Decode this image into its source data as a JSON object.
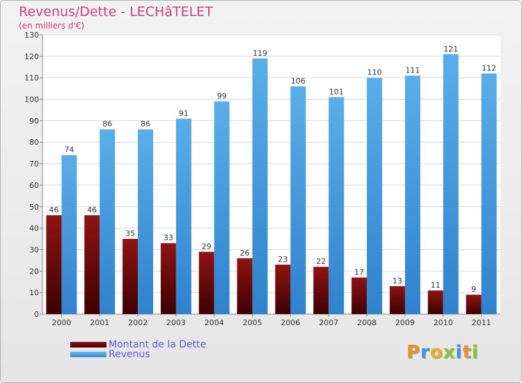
{
  "chart_data": {
    "type": "bar",
    "title": "Revenus/Dette - LECHâTELET",
    "subtitle": "(en milliers d'€)",
    "categories": [
      "2000",
      "2001",
      "2002",
      "2003",
      "2004",
      "2005",
      "2006",
      "2007",
      "2008",
      "2009",
      "2010",
      "2011"
    ],
    "series": [
      {
        "name": "Montant de la Dette",
        "color": "#6a0a0a",
        "values": [
          46,
          46,
          35,
          33,
          29,
          26,
          23,
          22,
          17,
          13,
          11,
          9
        ]
      },
      {
        "name": "Revenus",
        "color": "#4a9fe0",
        "values": [
          74,
          86,
          86,
          91,
          99,
          119,
          106,
          101,
          110,
          111,
          121,
          112
        ]
      }
    ],
    "ylim": [
      0,
      130
    ],
    "yticks": [
      0,
      10,
      20,
      30,
      40,
      50,
      60,
      70,
      80,
      90,
      100,
      110,
      120,
      130
    ],
    "grid": true,
    "legend_position": "bottom-left"
  },
  "logo_text": [
    "P",
    "r",
    "o",
    "x",
    "i",
    "t",
    "i"
  ]
}
